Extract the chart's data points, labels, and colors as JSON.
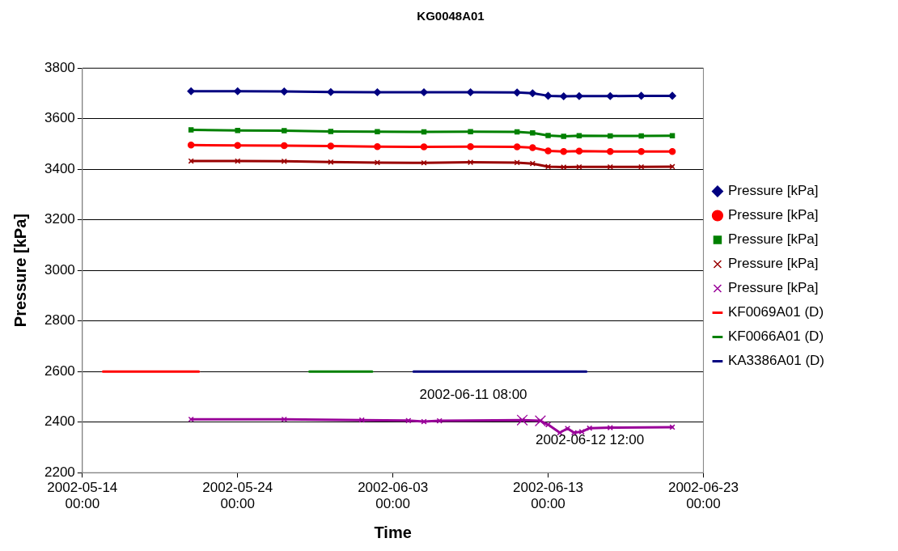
{
  "chart_data": {
    "type": "line",
    "title": "KG0048A01",
    "xlabel": "Time",
    "ylabel": "Pressure [kPa]",
    "xlim": [
      "2002-05-14T00:00",
      "2002-06-23T00:00"
    ],
    "xticks": [
      {
        "value": "2002-05-14T00:00",
        "label": "2002-05-14 00:00"
      },
      {
        "value": "2002-05-24T00:00",
        "label": "2002-05-24 00:00"
      },
      {
        "value": "2002-06-03T00:00",
        "label": "2002-06-03 00:00"
      },
      {
        "value": "2002-06-13T00:00",
        "label": "2002-06-13 00:00"
      },
      {
        "value": "2002-06-23T00:00",
        "label": "2002-06-23 00:00"
      }
    ],
    "ylim": [
      2200,
      3800
    ],
    "yticks": [
      2200,
      2400,
      2600,
      2800,
      3000,
      3200,
      3400,
      3600,
      3800
    ],
    "grid": "y",
    "legend": "right",
    "line_style": "solid",
    "x": [
      "2002-05-21",
      "2002-05-24",
      "2002-05-27",
      "2002-05-30",
      "2002-06-02",
      "2002-06-05",
      "2002-06-08",
      "2002-06-11",
      "2002-06-12",
      "2002-06-13",
      "2002-06-14",
      "2002-06-15",
      "2002-06-17",
      "2002-06-19",
      "2002-06-21"
    ],
    "series": [
      {
        "name": "Pressure [kPa]",
        "color": "#000080",
        "marker": "diamond",
        "values": [
          3708,
          3708,
          3707,
          3705,
          3704,
          3704,
          3704,
          3703,
          3700,
          3690,
          3688,
          3689,
          3689,
          3690,
          3690
        ]
      },
      {
        "name": "Pressure [kPa]",
        "color": "#ff0000",
        "marker": "circle",
        "values": [
          3495,
          3494,
          3493,
          3491,
          3489,
          3488,
          3489,
          3488,
          3485,
          3472,
          3470,
          3471,
          3470,
          3470,
          3470
        ]
      },
      {
        "name": "Pressure [kPa]",
        "color": "#008000",
        "marker": "square",
        "values": [
          3555,
          3553,
          3552,
          3549,
          3548,
          3547,
          3548,
          3547,
          3543,
          3533,
          3530,
          3532,
          3531,
          3531,
          3532
        ]
      },
      {
        "name": "Pressure [kPa]",
        "color": "#990000",
        "marker": "cross",
        "values": [
          3432,
          3432,
          3431,
          3428,
          3426,
          3425,
          3427,
          3426,
          3422,
          3410,
          3408,
          3409,
          3409,
          3409,
          3410
        ]
      },
      {
        "name": "Pressure [kPa]",
        "color": "#990099",
        "marker": "cross",
        "x": [
          "2002-05-21",
          "2002-05-27",
          "2002-06-01",
          "2002-06-04",
          "2002-06-05",
          "2002-06-06",
          "2002-06-11T08:00",
          "2002-06-12T12:00",
          "2002-06-13",
          "2002-06-13T18:00",
          "2002-06-14T06:00",
          "2002-06-14T16:00",
          "2002-06-15T04:00",
          "2002-06-15T16:00",
          "2002-06-17",
          "2002-06-21"
        ],
        "values": [
          2411,
          2411,
          2408,
          2406,
          2402,
          2405,
          2408,
          2405,
          2390,
          2358,
          2375,
          2358,
          2362,
          2376,
          2378,
          2380
        ]
      },
      {
        "name": "KF0069A01 (D)",
        "color": "#ff0000",
        "marker": "none",
        "x": [
          "2002-05-15T08:00",
          "2002-05-21T12:00"
        ],
        "values": [
          2600,
          2600
        ]
      },
      {
        "name": "KF0066A01 (D)",
        "color": "#008000",
        "marker": "none",
        "x": [
          "2002-05-28T15:00",
          "2002-06-01T16:00"
        ],
        "values": [
          2600,
          2600
        ]
      },
      {
        "name": "KA3386A01 (D)",
        "color": "#000080",
        "marker": "none",
        "x": [
          "2002-06-04T08:00",
          "2002-06-15T11:00"
        ],
        "values": [
          2600,
          2600
        ]
      },
      {
        "type": "scatter",
        "color": "#990099",
        "marker": "cross",
        "x": [
          "2002-06-11T08:00",
          "2002-06-12T12:00"
        ],
        "values": [
          2408,
          2405
        ]
      }
    ],
    "annotations": [
      {
        "text": "2002-06-11 08:00",
        "x": "2002-06-11T08:00",
        "y": 2408
      },
      {
        "text": "2002-06-12 12:00",
        "x": "2002-06-12T12:00",
        "y": 2405
      }
    ]
  }
}
